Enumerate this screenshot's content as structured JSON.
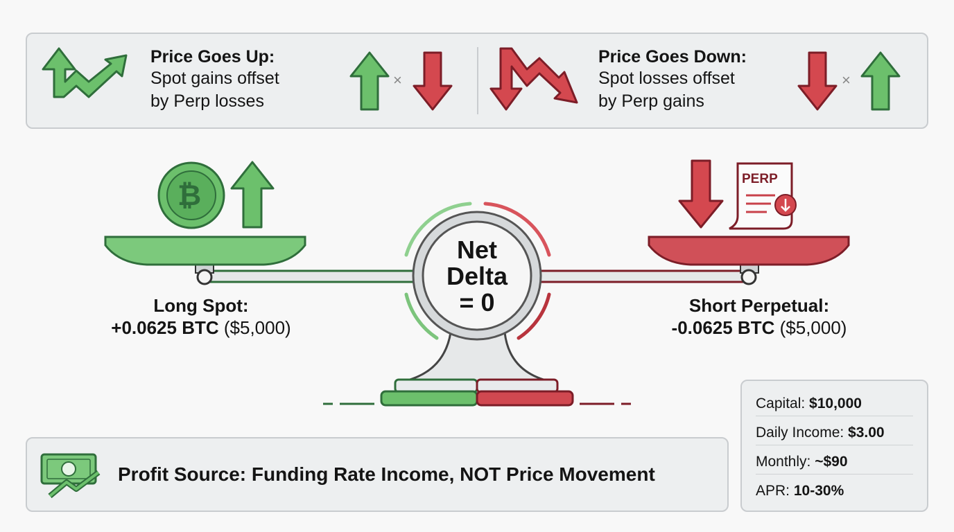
{
  "top_panel": {
    "up": {
      "title": "Price Goes Up:",
      "line1": "Spot gains offset",
      "line2": "by Perp losses",
      "times": "×"
    },
    "down": {
      "title": "Price Goes Down:",
      "line1": "Spot losses offset",
      "line2": "by Perp gains",
      "times": "×"
    }
  },
  "scale": {
    "center_line1": "Net",
    "center_line2": "Delta",
    "center_line3": "= 0",
    "coin_symbol": "₿",
    "perp_doc_label": "PERP",
    "left": {
      "title": "Long Spot:",
      "amount": "+0.0625 BTC",
      "value": "($5,000)"
    },
    "right": {
      "title": "Short Perpetual:",
      "amount": "-0.0625 BTC",
      "value": "($5,000)"
    }
  },
  "profit_banner": {
    "text": "Profit Source: Funding Rate Income, NOT Price Movement"
  },
  "stats": [
    {
      "label": "Capital: ",
      "value": "$10,000"
    },
    {
      "label": "Daily Income: ",
      "value": "$3.00"
    },
    {
      "label": "Monthly: ",
      "value": "~$90"
    },
    {
      "label": "APR: ",
      "value": "10-30%"
    }
  ],
  "colors": {
    "green": "#5fb862",
    "green_dark": "#2f6e3b",
    "red": "#c8414a",
    "red_dark": "#7c1d27",
    "panel": "#edeff0"
  }
}
